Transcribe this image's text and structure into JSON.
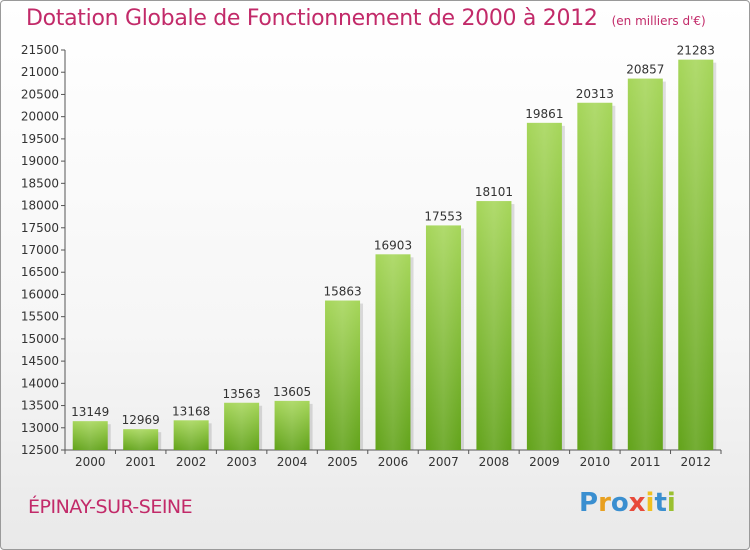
{
  "title": "Dotation Globale de Fonctionnement de 2000 à 2012",
  "unit_note": "(en milliers d'€)",
  "commune": "ÉPINAY-SUR-SEINE",
  "logo": {
    "text": "Proxiti",
    "colors": [
      "#3a8fd0",
      "#e8a020",
      "#3a8fd0",
      "#e84a3a",
      "#f0c020",
      "#3a8fd0",
      "#9ac030"
    ]
  },
  "colors": {
    "accent": "#c22a69",
    "bar_light": "#a6d65a",
    "bar_dark": "#62a31a"
  },
  "chart_data": {
    "type": "bar",
    "title": "Dotation Globale de Fonctionnement de 2000 à 2012",
    "subtitle": "(en milliers d'€)",
    "categories": [
      "2000",
      "2001",
      "2002",
      "2003",
      "2004",
      "2005",
      "2006",
      "2007",
      "2008",
      "2009",
      "2010",
      "2011",
      "2012"
    ],
    "values": [
      13149,
      12969,
      13168,
      13563,
      13605,
      15863,
      16903,
      17553,
      18101,
      19861,
      20313,
      20857,
      21283
    ],
    "ylim": [
      12500,
      21500
    ],
    "yticks": [
      12500,
      13000,
      13500,
      14000,
      14500,
      15000,
      15500,
      16000,
      16500,
      17000,
      17500,
      18000,
      18500,
      19000,
      19500,
      20000,
      20500,
      21000,
      21500
    ],
    "grid": false,
    "legend": "none"
  }
}
